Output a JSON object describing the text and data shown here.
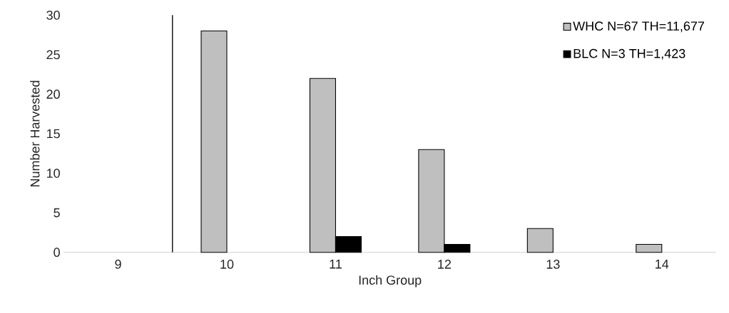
{
  "chart_data": {
    "type": "bar",
    "xlabel": "Inch Group",
    "ylabel": "Number Harvested",
    "categories": [
      "9",
      "10",
      "11",
      "12",
      "13",
      "14"
    ],
    "series": [
      {
        "name": "WHC N=67 TH=11,677",
        "color": "#bfbfbf",
        "values": [
          null,
          28,
          22,
          13,
          3,
          1
        ]
      },
      {
        "name": "BLC N=3 TH=1,423",
        "color": "#000000",
        "values": [
          null,
          null,
          2,
          1,
          null,
          null
        ]
      }
    ],
    "ylim": [
      0,
      30
    ],
    "yticks": [
      0,
      5,
      10,
      15,
      20,
      25,
      30
    ],
    "legend": "top right"
  }
}
